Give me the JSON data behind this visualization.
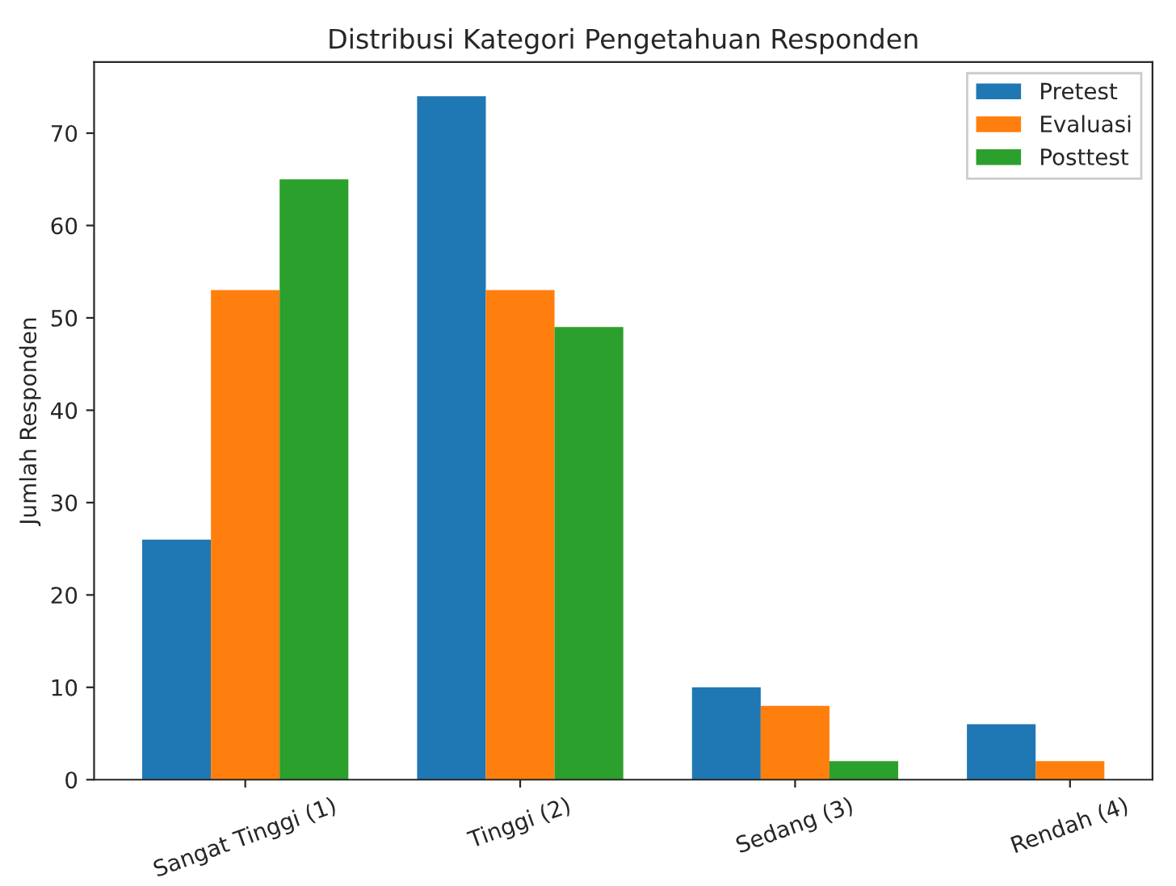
{
  "chart_data": {
    "type": "bar",
    "title": "Distribusi Kategori Pengetahuan Responden",
    "ylabel": "Jumlah Responden",
    "categories": [
      "Sangat Tinggi (1)",
      "Tinggi (2)",
      "Sedang (3)",
      "Rendah (4)"
    ],
    "series": [
      {
        "name": "Pretest",
        "color": "#1f77b4",
        "values": [
          26,
          74,
          10,
          6
        ]
      },
      {
        "name": "Evaluasi",
        "color": "#ff7f0e",
        "values": [
          53,
          53,
          8,
          2
        ]
      },
      {
        "name": "Posttest",
        "color": "#2ca02c",
        "values": [
          65,
          49,
          2,
          null
        ]
      }
    ],
    "ylim": [
      0,
      77.7
    ],
    "yticks": [
      0,
      10,
      20,
      30,
      40,
      50,
      60,
      70
    ],
    "grid": false,
    "legend": "top right"
  }
}
